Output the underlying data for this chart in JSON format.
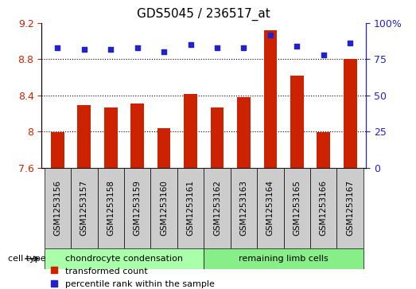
{
  "title": "GDS5045 / 236517_at",
  "categories": [
    "GSM1253156",
    "GSM1253157",
    "GSM1253158",
    "GSM1253159",
    "GSM1253160",
    "GSM1253161",
    "GSM1253162",
    "GSM1253163",
    "GSM1253164",
    "GSM1253165",
    "GSM1253166",
    "GSM1253167"
  ],
  "bar_values": [
    7.99,
    8.29,
    8.27,
    8.31,
    8.04,
    8.42,
    8.27,
    8.38,
    9.12,
    8.62,
    7.99,
    8.8
  ],
  "scatter_values": [
    83,
    82,
    82,
    83,
    80,
    85,
    83,
    83,
    92,
    84,
    78,
    86
  ],
  "ylim_left": [
    7.6,
    9.2
  ],
  "ylim_right": [
    0,
    100
  ],
  "yticks_left": [
    7.6,
    8.0,
    8.4,
    8.8,
    9.2
  ],
  "yticks_right": [
    0,
    25,
    50,
    75,
    100
  ],
  "ytick_labels_left": [
    "7.6",
    "8",
    "8.4",
    "8.8",
    "9.2"
  ],
  "ytick_labels_right": [
    "0",
    "25",
    "50",
    "75",
    "100%"
  ],
  "bar_color": "#cc2200",
  "scatter_color": "#2222cc",
  "cell_type_label": "cell type",
  "group1_label": "chondrocyte condensation",
  "group2_label": "remaining limb cells",
  "group1_indices": [
    0,
    1,
    2,
    3,
    4,
    5
  ],
  "group2_indices": [
    6,
    7,
    8,
    9,
    10,
    11
  ],
  "group1_color": "#aaffaa",
  "group2_color": "#88ee88",
  "legend_bar_label": "transformed count",
  "legend_scatter_label": "percentile rank within the sample",
  "grid_color": "#000000",
  "bg_color": "#cccccc",
  "plot_bg": "#ffffff"
}
